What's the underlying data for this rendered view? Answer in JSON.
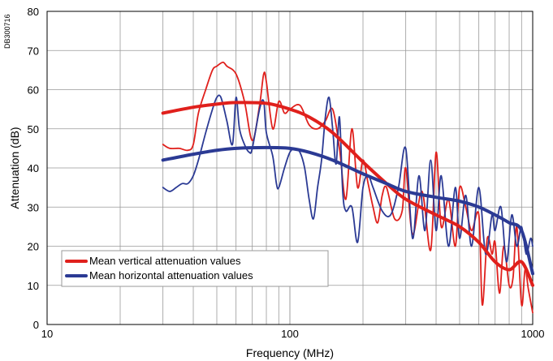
{
  "corner_label": "DB300716",
  "chart_data": {
    "type": "line",
    "xscale": "log",
    "xlim": [
      10,
      1000
    ],
    "ylim": [
      0,
      80
    ],
    "grid": true,
    "xlabel": "Frequency (MHz)",
    "ylabel": "Attenuation (dB)",
    "xticks": [
      10,
      100,
      1000
    ],
    "xtick_labels": [
      "10",
      "100",
      "1000"
    ],
    "yticks": [
      0,
      10,
      20,
      30,
      40,
      50,
      60,
      70,
      80
    ],
    "ytick_labels": [
      "0",
      "10",
      "20",
      "30",
      "40",
      "50",
      "60",
      "70",
      "80"
    ],
    "legend_position": "bottom-left",
    "series": [
      {
        "name": "Mean vertical attenuation values",
        "color": "#e0201c",
        "style": "smooth",
        "x": [
          30,
          40,
          50,
          60,
          80,
          100,
          120,
          150,
          200,
          250,
          300,
          400,
          500,
          600,
          700,
          800,
          900,
          1000
        ],
        "y": [
          54,
          55.5,
          56.3,
          56.7,
          56.5,
          55,
          53,
          49,
          41.5,
          36,
          32,
          28,
          25,
          21,
          16,
          14,
          16,
          10
        ]
      },
      {
        "name": "Mean horizontal attenuation values",
        "color": "#2b3a94",
        "style": "smooth",
        "x": [
          30,
          40,
          50,
          60,
          80,
          100,
          120,
          150,
          200,
          250,
          300,
          400,
          500,
          600,
          700,
          800,
          900,
          1000
        ],
        "y": [
          42,
          43.5,
          44.5,
          45,
          45.2,
          45,
          44,
          42,
          38.5,
          36,
          34,
          32.5,
          31.5,
          30,
          28,
          26,
          24,
          13
        ]
      },
      {
        "name": "",
        "color": "#e0201c",
        "style": "raw",
        "x": [
          30,
          32,
          35,
          38,
          40,
          42,
          45,
          48,
          50,
          53,
          55,
          60,
          65,
          70,
          75,
          78,
          80,
          85,
          90,
          95,
          100,
          110,
          120,
          130,
          140,
          150,
          160,
          170,
          180,
          190,
          200,
          210,
          220,
          230,
          240,
          250,
          270,
          290,
          300,
          320,
          350,
          380,
          400,
          420,
          450,
          480,
          500,
          530,
          560,
          600,
          620,
          650,
          680,
          700,
          730,
          760,
          800,
          830,
          860,
          900,
          930,
          960,
          1000
        ],
        "y": [
          46,
          45,
          45,
          44.5,
          46,
          54,
          60,
          65,
          66,
          67,
          66,
          64,
          57,
          47,
          56,
          64,
          62,
          50,
          57,
          54,
          55,
          56,
          51,
          50,
          52,
          55,
          45,
          32,
          50,
          35,
          42,
          36,
          30,
          26,
          33,
          35,
          27,
          29,
          40,
          23,
          34,
          19,
          44,
          25,
          32,
          20,
          35,
          30,
          24,
          28,
          5,
          22,
          18,
          21,
          8,
          20,
          10,
          12,
          25,
          5,
          14,
          9,
          3
        ]
      },
      {
        "name": "",
        "color": "#2b3a94",
        "style": "raw",
        "x": [
          30,
          32,
          34,
          36,
          38,
          40,
          42,
          45,
          48,
          50,
          52,
          55,
          58,
          60,
          62,
          65,
          68,
          70,
          75,
          78,
          80,
          85,
          88,
          90,
          95,
          100,
          105,
          110,
          115,
          120,
          125,
          130,
          135,
          140,
          145,
          150,
          155,
          160,
          165,
          170,
          180,
          190,
          200,
          210,
          220,
          240,
          260,
          280,
          300,
          320,
          340,
          360,
          380,
          400,
          420,
          450,
          480,
          500,
          530,
          560,
          600,
          640,
          680,
          700,
          740,
          780,
          820,
          860,
          900,
          940,
          980,
          1000
        ],
        "y": [
          35,
          34,
          35,
          36,
          36,
          38,
          42,
          49,
          55,
          58,
          58,
          52,
          46,
          58,
          50,
          46,
          44,
          45,
          55,
          57,
          49,
          43,
          36,
          35,
          40,
          44,
          45,
          44,
          40,
          32,
          27,
          35,
          42,
          53,
          58,
          50,
          41,
          53,
          34,
          29,
          30,
          21,
          35,
          38,
          35,
          29,
          28,
          35,
          45,
          22,
          38,
          24,
          42,
          24,
          38,
          20,
          35,
          22,
          33,
          20,
          35,
          18,
          28,
          24,
          30,
          16,
          28,
          20,
          25,
          18,
          22,
          20
        ]
      }
    ]
  }
}
